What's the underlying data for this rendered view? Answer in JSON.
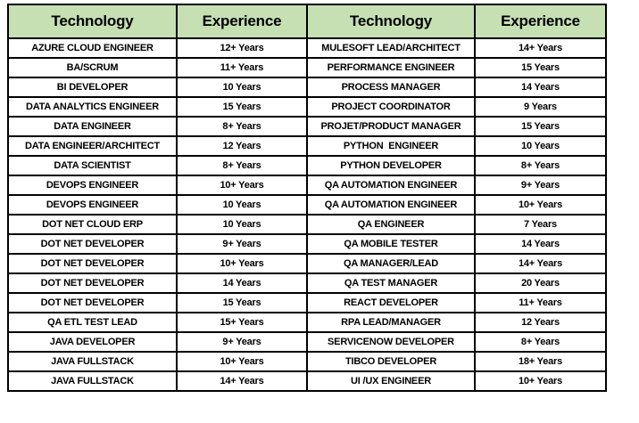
{
  "colors": {
    "header_bg": "#c6e0b4",
    "border": "#000000",
    "text": "#000000",
    "row_bg": "#ffffff",
    "page_bg": "#ffffff"
  },
  "table": {
    "columns": [
      "Technology",
      "Experience",
      "Technology",
      "Experience"
    ],
    "rows": [
      [
        "AZURE CLOUD ENGINEER",
        "12+ Years",
        "MULESOFT LEAD/ARCHITECT",
        "14+ Years"
      ],
      [
        "BA/SCRUM",
        "11+ Years",
        "PERFORMANCE ENGINEER",
        "15 Years"
      ],
      [
        "BI DEVELOPER",
        "10 Years",
        "PROCESS MANAGER",
        "14 Years"
      ],
      [
        "DATA ANALYTICS ENGINEER",
        "15 Years",
        "PROJECT COORDINATOR",
        "9 Years"
      ],
      [
        "DATA ENGINEER",
        "8+ Years",
        "PROJET/PRODUCT MANAGER",
        "15 Years"
      ],
      [
        "DATA ENGINEER/ARCHITECT",
        "12 Years",
        "PYTHON  ENGINEER",
        "10 Years"
      ],
      [
        "DATA SCIENTIST",
        "8+ Years",
        "PYTHON DEVELOPER",
        "8+ Years"
      ],
      [
        "DEVOPS ENGINEER",
        "10+ Years",
        "QA AUTOMATION ENGINEER",
        "9+ Years"
      ],
      [
        "DEVOPS ENGINEER",
        "10 Years",
        "QA AUTOMATION ENGINEER",
        "10+ Years"
      ],
      [
        "DOT NET CLOUD ERP",
        "10 Years",
        "QA ENGINEER",
        "7 Years"
      ],
      [
        "DOT NET DEVELOPER",
        "9+ Years",
        "QA MOBILE TESTER",
        "14 Years"
      ],
      [
        "DOT NET DEVELOPER",
        "10+ Years",
        "QA MANAGER/LEAD",
        "14+ Years"
      ],
      [
        "DOT NET DEVELOPER",
        "14 Years",
        "QA TEST MANAGER",
        "20 Years"
      ],
      [
        "DOT NET DEVELOPER",
        "15 Years",
        "REACT DEVELOPER",
        "11+ Years"
      ],
      [
        "QA ETL TEST LEAD",
        "15+ Years",
        "RPA LEAD/MANAGER",
        "12 Years"
      ],
      [
        "JAVA DEVELOPER",
        "9+ Years",
        "SERVICENOW DEVELOPER",
        "8+ Years"
      ],
      [
        "JAVA FULLSTACK",
        "10+ Years",
        "TIBCO DEVELOPER",
        "18+ Years"
      ],
      [
        "JAVA FULLSTACK",
        "14+ Years",
        "UI /UX ENGINEER",
        "10+ Years"
      ]
    ]
  }
}
